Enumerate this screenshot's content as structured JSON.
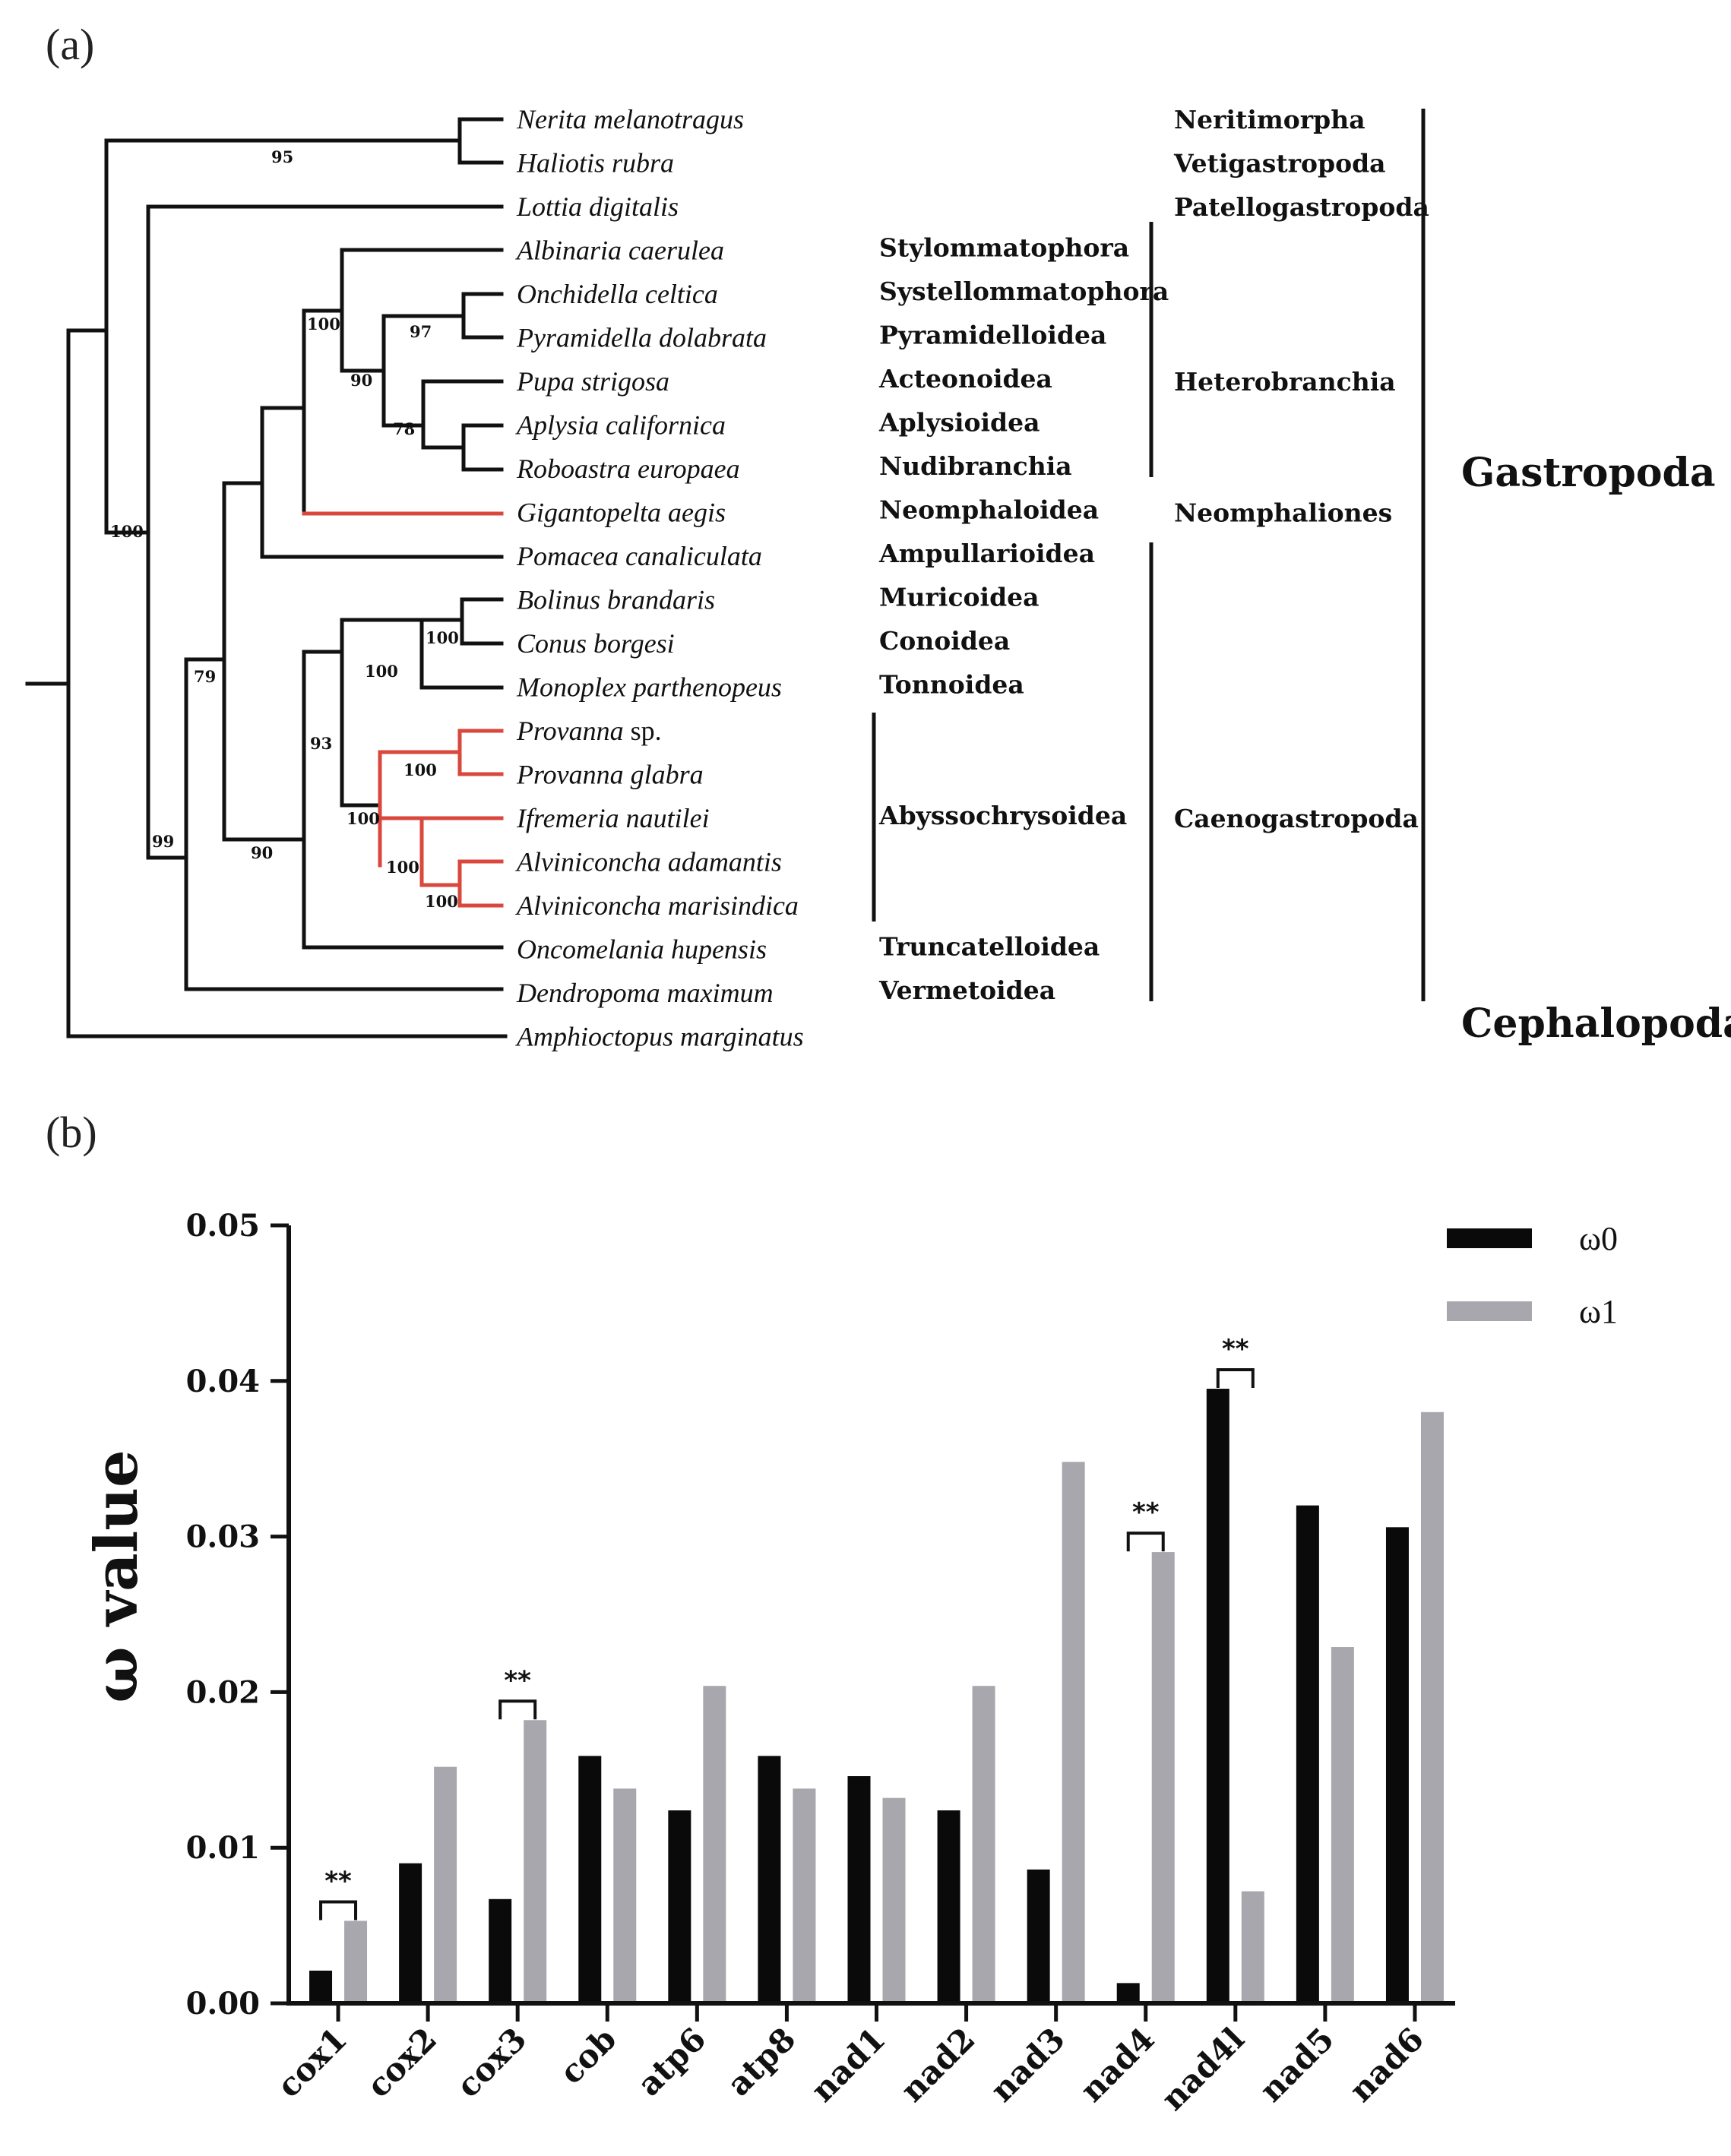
{
  "panel_a": {
    "label": "(a)",
    "taxa": [
      {
        "name": "Nerita melanotragus",
        "highlight": false
      },
      {
        "name": "Haliotis rubra",
        "highlight": false
      },
      {
        "name": "Lottia digitalis",
        "highlight": false
      },
      {
        "name": "Albinaria caerulea",
        "highlight": false
      },
      {
        "name": "Onchidella celtica",
        "highlight": false
      },
      {
        "name": "Pyramidella dolabrata",
        "highlight": false
      },
      {
        "name": "Pupa strigosa",
        "highlight": false
      },
      {
        "name": "Aplysia californica",
        "highlight": false
      },
      {
        "name": "Roboastra europaea",
        "highlight": false
      },
      {
        "name": "Gigantopelta aegis",
        "highlight": false
      },
      {
        "name": "Pomacea canaliculata",
        "highlight": false
      },
      {
        "name": "Bolinus brandaris",
        "highlight": false
      },
      {
        "name": "Conus borgesi",
        "highlight": false
      },
      {
        "name": "Monoplex parthenopeus",
        "highlight": false
      },
      {
        "name": "Provanna",
        "suffix": " sp.",
        "highlight": false
      },
      {
        "name": "Provanna glabra",
        "highlight": true
      },
      {
        "name": "Ifremeria nautilei",
        "highlight": false
      },
      {
        "name": "Alviniconcha adamantis",
        "highlight": false
      },
      {
        "name": "Alviniconcha marisindica",
        "highlight": false
      },
      {
        "name": "Oncomelania hupensis",
        "highlight": false
      },
      {
        "name": "Dendropoma maximum",
        "highlight": false
      },
      {
        "name": "Amphioctopus marginatus",
        "highlight": false
      }
    ],
    "superfamilies": [
      {
        "label": "Stylommatophora",
        "row": 3
      },
      {
        "label": "Systellommatophora",
        "row": 4
      },
      {
        "label": "Pyramidelloidea",
        "row": 5
      },
      {
        "label": "Acteonoidea",
        "row": 6
      },
      {
        "label": "Aplysioidea",
        "row": 7
      },
      {
        "label": "Nudibranchia",
        "row": 8
      },
      {
        "label": "Neomphaloidea",
        "row": 9
      },
      {
        "label": "Ampullarioidea",
        "row": 10
      },
      {
        "label": "Muricoidea",
        "row": 11
      },
      {
        "label": "Conoidea",
        "row": 12
      },
      {
        "label": "Tonnoidea",
        "row": 13
      },
      {
        "label": "Abyssochrysoidea",
        "row": 16
      },
      {
        "label": "Truncatelloidea",
        "row": 19
      },
      {
        "label": "Vermetoidea",
        "row": 20
      }
    ],
    "subclasses": [
      {
        "label": "Neritimorpha",
        "row": 0
      },
      {
        "label": "Vetigastropoda",
        "row": 1
      },
      {
        "label": "Patellogastropoda",
        "row": 2
      },
      {
        "label": "Heterobranchia",
        "row": 6
      },
      {
        "label": "Neomphaliones",
        "row": 9
      },
      {
        "label": "Caenogastropoda",
        "row": 16
      }
    ],
    "classes": [
      {
        "label": "Gastropoda"
      },
      {
        "label": "Cephalopoda"
      }
    ],
    "bootstrap": [
      "95",
      "100",
      "97",
      "90",
      "78",
      "100",
      "79",
      "100",
      "100",
      "93",
      "100",
      "100",
      "100",
      "100",
      "99",
      "90"
    ],
    "colors": {
      "branch": "#111111",
      "highlight": "#d9473d"
    }
  },
  "panel_b": {
    "label": "(b)"
  },
  "chart_data": {
    "type": "bar",
    "title": "",
    "xlabel": "",
    "ylabel": "ω value",
    "ylim": [
      0,
      0.05
    ],
    "yticks": [
      "0.00",
      "0.01",
      "0.02",
      "0.03",
      "0.04",
      "0.05"
    ],
    "categories": [
      "cox1",
      "cox2",
      "cox3",
      "cob",
      "atp6",
      "atp8",
      "nad1",
      "nad2",
      "nad3",
      "nad4",
      "nad4l",
      "nad5",
      "nad6"
    ],
    "series": [
      {
        "name": "ω0",
        "color": "#0a0a0a",
        "values": [
          0.0021,
          0.009,
          0.0067,
          0.0159,
          0.0124,
          0.0159,
          0.0146,
          0.0124,
          0.0086,
          0.0013,
          0.0395,
          0.032,
          0.0306
        ]
      },
      {
        "name": "ω1",
        "color": "#a7a7ad",
        "values": [
          0.0053,
          0.0152,
          0.0182,
          0.0138,
          0.0204,
          0.0138,
          0.0132,
          0.0204,
          0.0348,
          0.029,
          0.0072,
          0.0229,
          0.038
        ]
      }
    ],
    "significance": [
      {
        "category": "cox1",
        "label": "**"
      },
      {
        "category": "cox3",
        "label": "**"
      },
      {
        "category": "nad4",
        "label": "**"
      },
      {
        "category": "nad4l",
        "label": "**"
      }
    ],
    "legend": "top-right",
    "grid": false
  }
}
